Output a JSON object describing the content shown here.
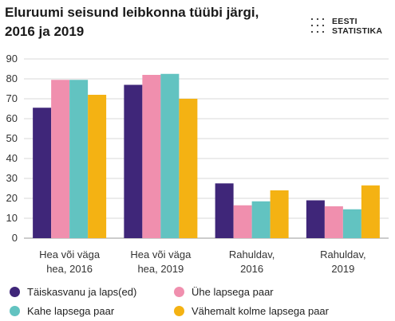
{
  "title": "Eluruumi seisund leibkonna tüübi järgi, 2016 ja 2019",
  "logo": {
    "line1": "EESTI",
    "line2": "STATISTIKA"
  },
  "chart_data": {
    "type": "bar",
    "title": "Eluruumi seisund leibkonna tüübi järgi, 2016 ja 2019",
    "categories": [
      [
        "Hea või väga",
        "hea, 2016"
      ],
      [
        "Hea või väga",
        "hea, 2019"
      ],
      [
        "Rahuldav,",
        "2016"
      ],
      [
        "Rahuldav,",
        "2019"
      ]
    ],
    "series": [
      {
        "name": "Täiskasvanu ja laps(ed)",
        "color": "#3f2679",
        "values": [
          65.5,
          77,
          27.5,
          19
        ]
      },
      {
        "name": "Ühe lapsega paar",
        "color": "#f08fae",
        "values": [
          79.5,
          82,
          16.5,
          16
        ]
      },
      {
        "name": "Kahe lapsega paar",
        "color": "#62c3c1",
        "values": [
          79.5,
          82.5,
          18.5,
          14.5
        ]
      },
      {
        "name": "Vähemalt kolme lapsega paar",
        "color": "#f4b213",
        "values": [
          72,
          70,
          24,
          26.5
        ]
      }
    ],
    "ylim": [
      0,
      90
    ],
    "yticks": [
      0,
      10,
      20,
      30,
      40,
      50,
      60,
      70,
      80,
      90
    ],
    "grid": true,
    "legend_position": "bottom"
  }
}
